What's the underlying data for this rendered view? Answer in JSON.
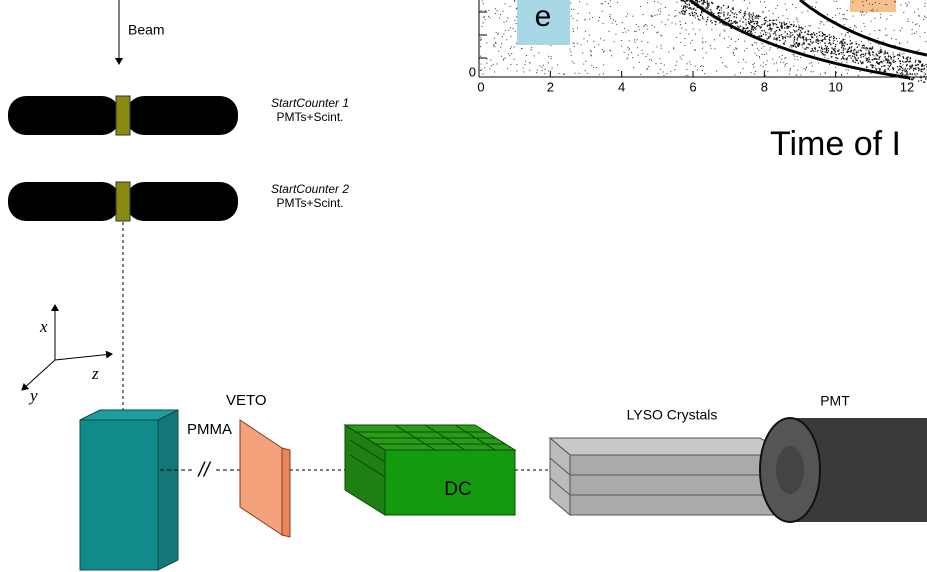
{
  "beam": "Beam",
  "counters": [
    {
      "name": "StartCounter 1",
      "detail": "PMTs+Scint."
    },
    {
      "name": "StartCounter 2",
      "detail": "PMTs+Scint."
    }
  ],
  "axes": {
    "x": "x",
    "y": "y",
    "z": "z"
  },
  "components": {
    "pmma": "PMMA",
    "veto": "VETO",
    "dc": "DC",
    "lyso": "LYSO Crystals",
    "pmt": "PMT",
    "cut": "//"
  },
  "plot": {
    "xticks": [
      0,
      2,
      4,
      6,
      8,
      10,
      12
    ],
    "xlim": [
      0,
      12
    ],
    "yticks": [
      0
    ],
    "particle": "e",
    "xlabel": "Time of I"
  }
}
